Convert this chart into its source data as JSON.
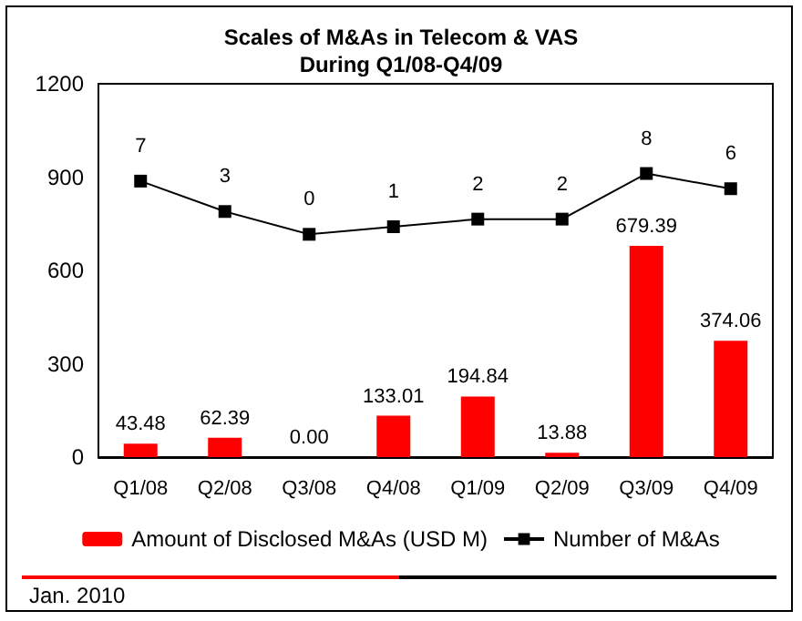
{
  "chart_data": {
    "type": "bar",
    "title": "Scales of M&As in Telecom & VAS\nDuring Q1/08-Q4/09",
    "categories": [
      "Q1/08",
      "Q2/08",
      "Q3/08",
      "Q4/08",
      "Q1/09",
      "Q2/09",
      "Q3/09",
      "Q4/09"
    ],
    "series": [
      {
        "name": "Amount of Disclosed M&As (USD M)",
        "color": "#ff0000",
        "values": [
          43.48,
          62.39,
          0,
          133.01,
          194.84,
          13.88,
          679.39,
          374.06
        ],
        "value_labels": [
          "43.48",
          "62.39",
          "0.00",
          "133.01",
          "194.84",
          "13.88",
          "679.39",
          "374.06"
        ]
      },
      {
        "name": "Number of M&As",
        "type": "line",
        "axis": "y2",
        "color": "#000000",
        "values": [
          7,
          3,
          0,
          1,
          2,
          2,
          8,
          6
        ]
      }
    ],
    "ylim": [
      0,
      1200
    ],
    "yticks": [
      0,
      300,
      600,
      900,
      1200
    ],
    "y2lim": [
      -29.3,
      19.8
    ],
    "data_labels": true,
    "grid": false,
    "legend": "bottom",
    "marker": "square",
    "line_style": "solid",
    "annotations": [
      "Jan. 2010"
    ]
  }
}
